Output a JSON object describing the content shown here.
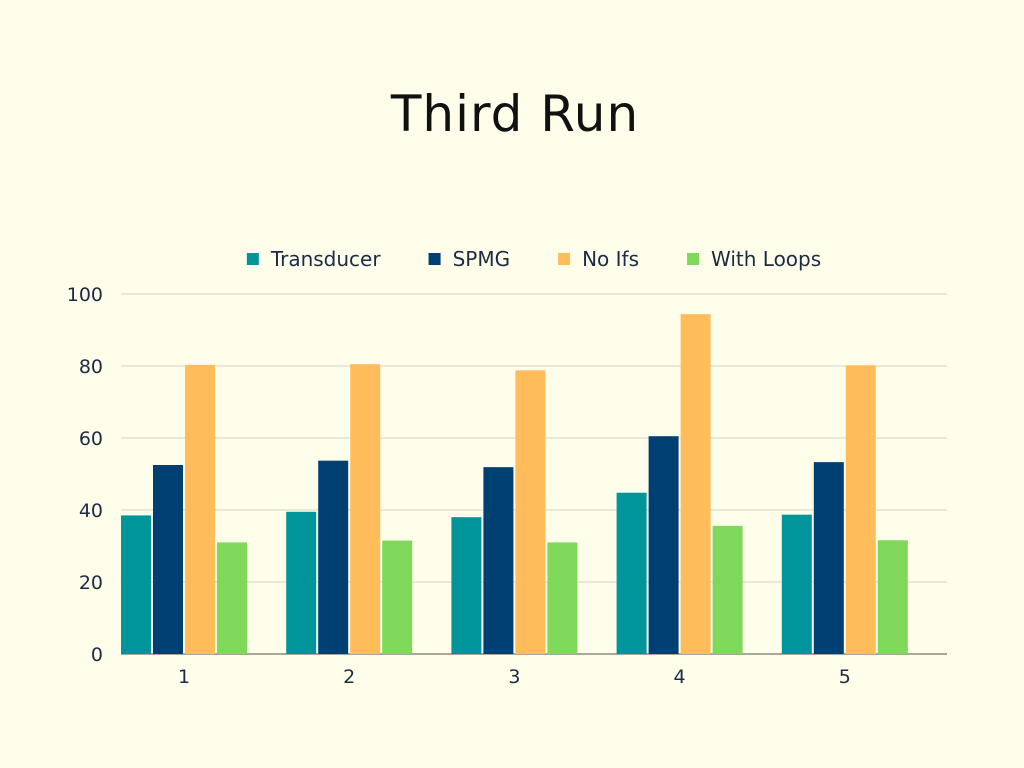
{
  "chart_data": {
    "type": "bar",
    "title": "Third Run",
    "xlabel": "",
    "ylabel": "",
    "categories": [
      "1",
      "2",
      "3",
      "4",
      "5"
    ],
    "series": [
      {
        "name": "Transducer",
        "color": "#00959a",
        "values": [
          38.5,
          39.5,
          38,
          44.8,
          38.7
        ]
      },
      {
        "name": "SPMG",
        "color": "#003f72",
        "values": [
          52.5,
          53.7,
          51.9,
          60.5,
          53.3
        ]
      },
      {
        "name": "No Ifs",
        "color": "#ffbc5a",
        "values": [
          80.3,
          80.5,
          78.8,
          94.4,
          80.2
        ]
      },
      {
        "name": "With Loops",
        "color": "#7fd85a",
        "values": [
          31,
          31.5,
          31,
          35.6,
          31.6
        ]
      }
    ],
    "ylim": [
      0,
      100
    ],
    "yticks": [
      0,
      20,
      40,
      60,
      80,
      100
    ],
    "grid": true,
    "legend_position": "top"
  },
  "colors": {
    "background": "#fefeea",
    "gridline": "#d3d4c6",
    "axis": "#8a8b80",
    "text": "#1c2b44"
  }
}
